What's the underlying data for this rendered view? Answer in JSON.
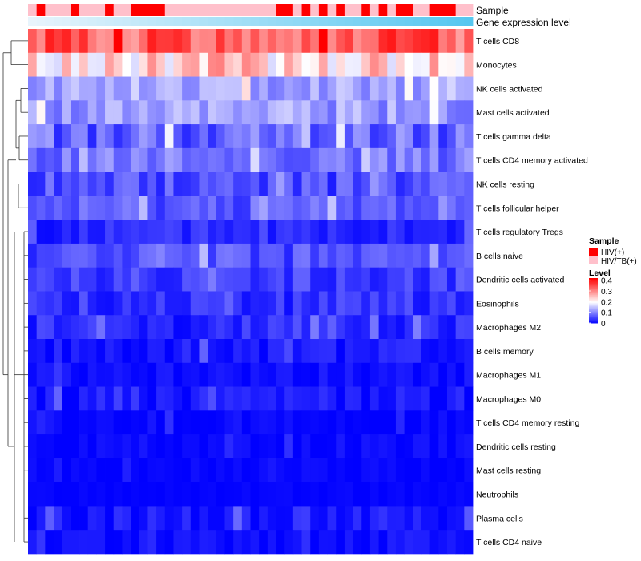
{
  "chart_data": {
    "type": "heatmap",
    "title": "",
    "annotations": {
      "sample_label": "Sample",
      "expression_label": "Gene expression level",
      "sample_groups": [
        "HIV(+)",
        "HIV/TB(+)"
      ],
      "sample_colors": [
        "#ff0000",
        "#ffc0cb"
      ],
      "columns": [
        "HIV/TB(+)",
        "HIV(+)",
        "HIV/TB(+)",
        "HIV/TB(+)",
        "HIV/TB(+)",
        "HIV(+)",
        "HIV/TB(+)",
        "HIV/TB(+)",
        "HIV/TB(+)",
        "HIV(+)",
        "HIV/TB(+)",
        "HIV/TB(+)",
        "HIV(+)",
        "HIV(+)",
        "HIV(+)",
        "HIV(+)",
        "HIV/TB(+)",
        "HIV/TB(+)",
        "HIV/TB(+)",
        "HIV/TB(+)",
        "HIV/TB(+)",
        "HIV/TB(+)",
        "HIV/TB(+)",
        "HIV/TB(+)",
        "HIV/TB(+)",
        "HIV/TB(+)",
        "HIV/TB(+)",
        "HIV/TB(+)",
        "HIV/TB(+)",
        "HIV(+)",
        "HIV(+)",
        "HIV/TB(+)",
        "HIV(+)",
        "HIV/TB(+)",
        "HIV(+)",
        "HIV/TB(+)",
        "HIV(+)",
        "HIV/TB(+)",
        "HIV/TB(+)",
        "HIV(+)",
        "HIV/TB(+)",
        "HIV(+)",
        "HIV/TB(+)",
        "HIV(+)",
        "HIV(+)",
        "HIV/TB(+)",
        "HIV/TB(+)",
        "HIV(+)",
        "HIV(+)",
        "HIV(+)",
        "HIV/TB(+)",
        "HIV/TB(+)"
      ]
    },
    "rows": [
      "T cells CD8",
      "Monocytes",
      "NK cells activated",
      "Mast cells activated",
      "T cells gamma delta",
      "T cells CD4 memory activated",
      "NK cells resting",
      "T cells follicular helper",
      "T cells regulatory  Tregs",
      "B cells naive",
      "Dendritic cells activated",
      "Eosinophils",
      "Macrophages M2",
      "B cells memory",
      "Macrophages M1",
      "Macrophages M0",
      "T cells CD4 memory resting",
      "Dendritic cells resting",
      "Mast cells resting",
      "Neutrophils",
      "Plasma cells",
      "T cells CD4 naive"
    ],
    "row_base_levels": [
      0.34,
      0.24,
      0.13,
      0.12,
      0.08,
      0.09,
      0.06,
      0.07,
      0.03,
      0.06,
      0.05,
      0.04,
      0.03,
      0.015,
      0.01,
      0.015,
      0.005,
      0.005,
      0.005,
      0.003,
      0.02,
      0.01
    ],
    "row_variation": [
      0.06,
      0.07,
      0.04,
      0.04,
      0.05,
      0.04,
      0.04,
      0.035,
      0.025,
      0.035,
      0.03,
      0.03,
      0.03,
      0.025,
      0.015,
      0.025,
      0.015,
      0.015,
      0.008,
      0.005,
      0.025,
      0.015
    ],
    "n_columns": 52,
    "legend": {
      "sample_title": "Sample",
      "sample_items": [
        "HIV(+)",
        "HIV/TB(+)"
      ],
      "level_title": "Level",
      "level_ticks": [
        "0.4",
        "0.3",
        "0.2",
        "0.1",
        "0"
      ],
      "level_tick_values": [
        0.4,
        0.3,
        0.2,
        0.1,
        0
      ],
      "level_range": [
        0,
        0.42
      ],
      "colors": {
        "low": "#0000ff",
        "mid": "#ffffff",
        "high": "#ff0000",
        "mid_value": 0.2
      }
    },
    "row_dendrogram": true
  }
}
